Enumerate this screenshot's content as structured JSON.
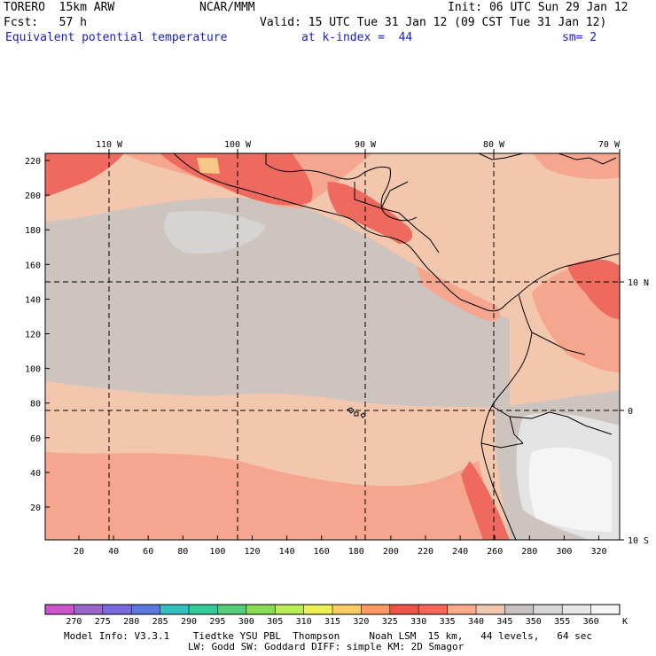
{
  "header": {
    "model": "TORERO  15km ARW",
    "center": "NCAR/MMM",
    "init": "Init: 06 UTC Sun 29 Jan 12",
    "fcst": "Fcst:   57 h",
    "valid": "Valid: 15 UTC Tue 31 Jan 12 (09 CST Tue 31 Jan 12)",
    "field": "Equivalent potential temperature",
    "level": "at k-index =  44",
    "smooth": "sm= 2"
  },
  "map": {
    "lon_labels": [
      "110 W",
      "100 W",
      "90 W",
      "80 W",
      "70 W"
    ],
    "lat_labels": [
      "10 N",
      "0",
      "10 S"
    ],
    "y_ticks": [
      "220",
      "200",
      "180",
      "160",
      "140",
      "120",
      "100",
      "80",
      "60",
      "40",
      "20"
    ],
    "x_ticks": [
      "20",
      "40",
      "60",
      "80",
      "100",
      "120",
      "140",
      "160",
      "180",
      "200",
      "220",
      "240",
      "260",
      "280",
      "300",
      "320"
    ]
  },
  "colorbar": {
    "unit": "K",
    "levels": [
      "270",
      "275",
      "280",
      "285",
      "290",
      "295",
      "300",
      "305",
      "310",
      "315",
      "320",
      "325",
      "330",
      "335",
      "340",
      "345",
      "350",
      "355",
      "360"
    ],
    "colors": [
      "#cc55cc",
      "#9966cc",
      "#7a6ae0",
      "#5a7ae0",
      "#33c0c0",
      "#33cc99",
      "#55cc77",
      "#88dd55",
      "#bbee55",
      "#eeee55",
      "#ffcc66",
      "#ff9966",
      "#ee5544",
      "#ff6655",
      "#ffaa88",
      "#f0c8b0",
      "#c8c2c0",
      "#d8d8d8",
      "#e8e8e8",
      "#f6f6f6"
    ]
  },
  "footer": {
    "line1": "Model Info: V3.3.1    Tiedtke YSU PBL  Thompson     Noah LSM  15 km,   44 levels,   64 sec",
    "line2": "LW: Godd SW: Goddard DIFF: simple KM: 2D Smagor"
  }
}
